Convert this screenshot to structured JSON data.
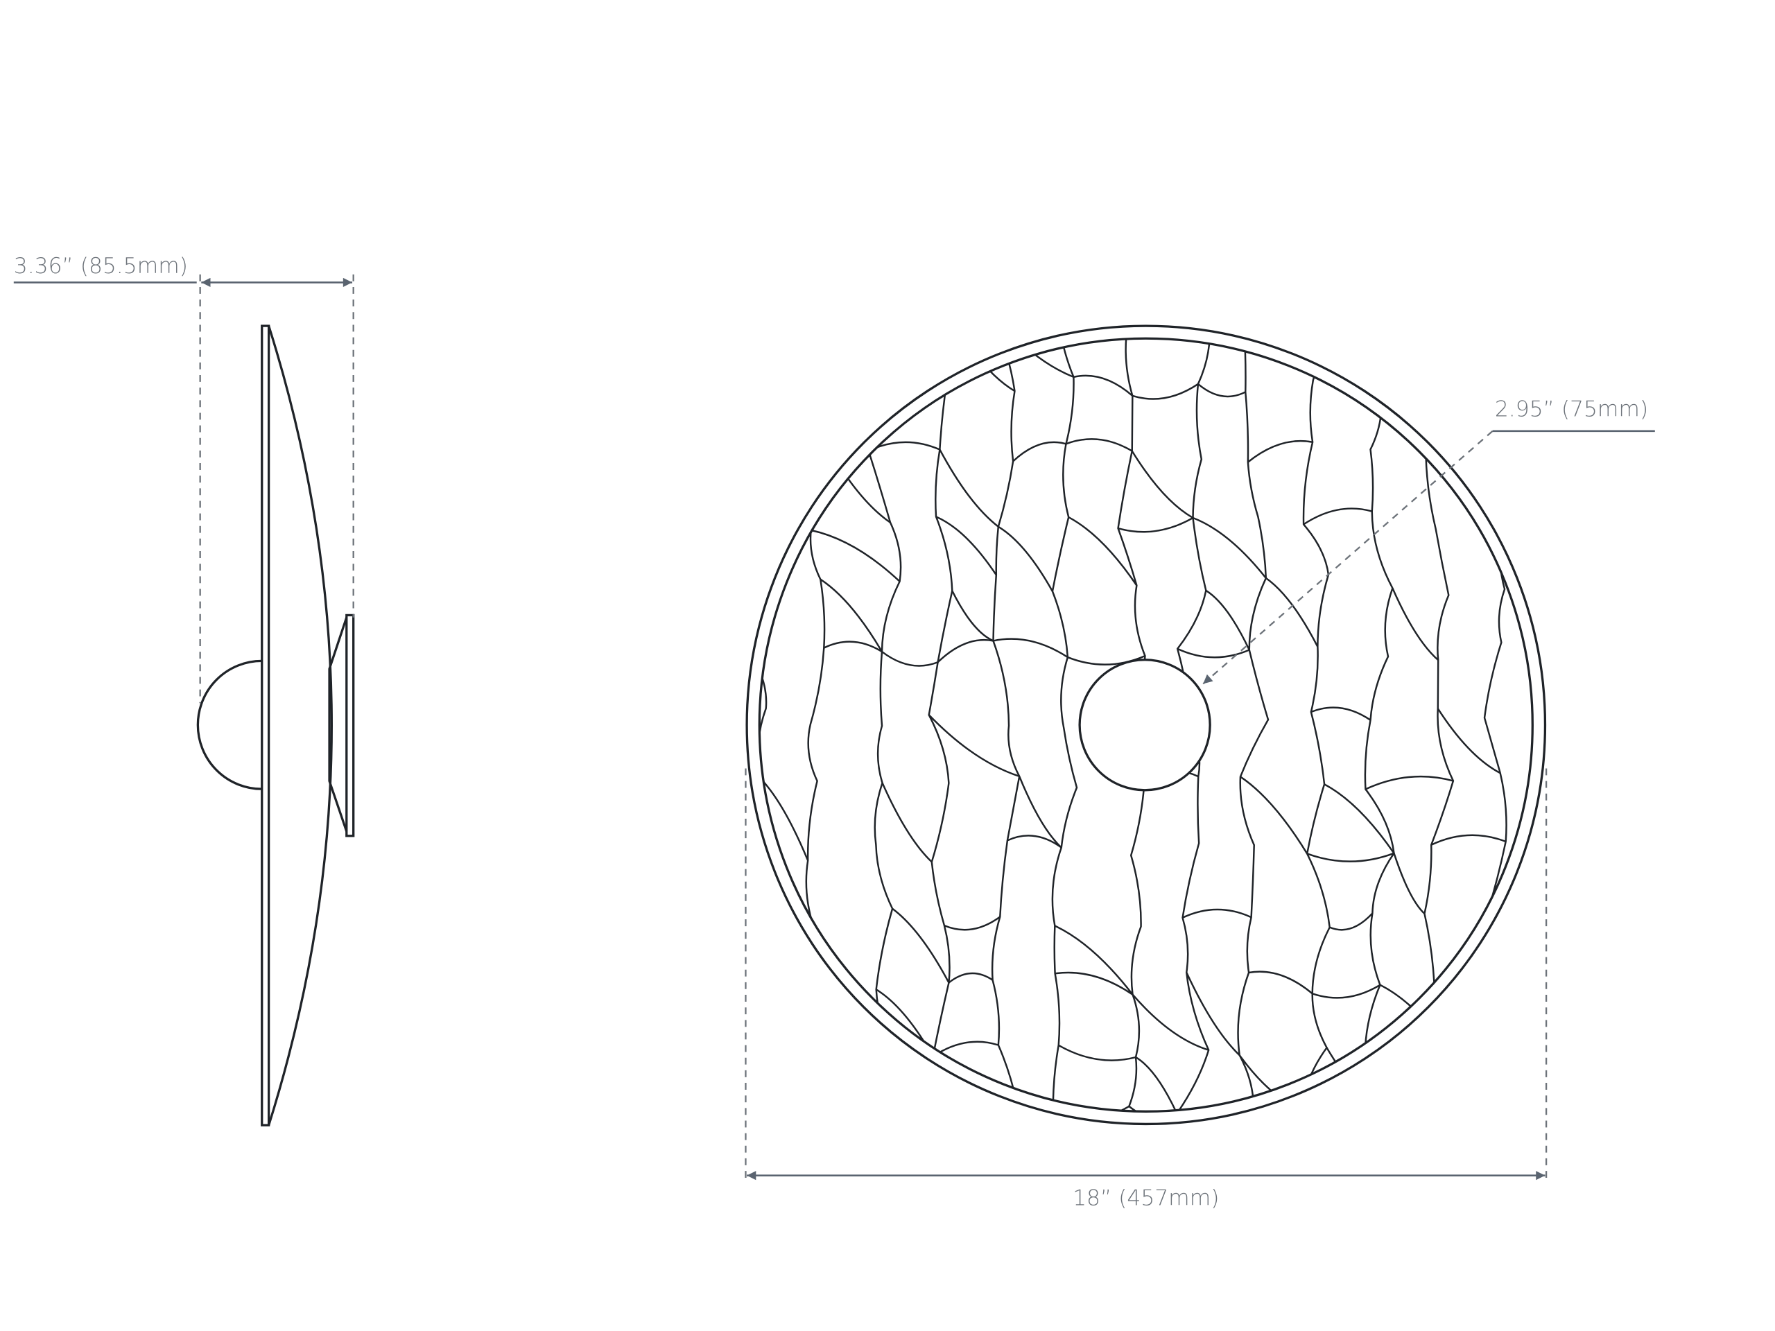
{
  "dimensions": {
    "depth": "3.36” (85.5mm)",
    "canopy": "2.95” (75mm)",
    "diameter": "18” (457mm)"
  }
}
